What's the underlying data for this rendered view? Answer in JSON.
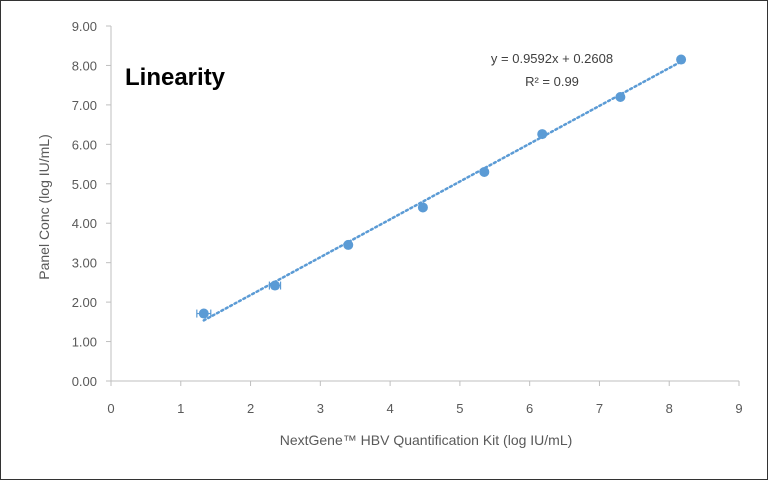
{
  "chart_data": {
    "type": "scatter",
    "title": "Linearity",
    "xlabel": "NextGene™  HBV Quantification Kit (log IU/mL)",
    "ylabel": "Panel Conc (log IU/mL)",
    "xlim": [
      0,
      9
    ],
    "ylim": [
      0,
      9
    ],
    "x_ticks": [
      "0",
      "1",
      "2",
      "3",
      "4",
      "5",
      "6",
      "7",
      "8",
      "9"
    ],
    "y_ticks": [
      "0.00",
      "1.00",
      "2.00",
      "3.00",
      "4.00",
      "5.00",
      "6.00",
      "7.00",
      "8.00",
      "9.00"
    ],
    "grid": false,
    "series": [
      {
        "x": [
          1.33,
          2.35,
          3.4,
          4.47,
          5.35,
          6.18,
          7.3,
          8.17
        ],
        "y": [
          1.71,
          2.42,
          3.45,
          4.4,
          5.3,
          6.26,
          7.2,
          8.15
        ],
        "x_error": [
          0.1,
          0.08,
          0.02,
          0.02,
          0.02,
          0.02,
          0.02,
          0.02
        ],
        "y_error": [
          0.12,
          0.05,
          0.03,
          0.03,
          0.03,
          0.03,
          0.03,
          0.03
        ]
      }
    ],
    "trendline": {
      "type": "linear",
      "slope": 0.9592,
      "intercept": 0.2608,
      "x_range": [
        1.33,
        8.17
      ],
      "equation_label": "y = 0.9592x + 0.2608",
      "r2_label": "R² = 0.99"
    },
    "colors": {
      "marker": "#5B9BD5",
      "axis": "#bfbfbf",
      "text": "#595959"
    }
  }
}
